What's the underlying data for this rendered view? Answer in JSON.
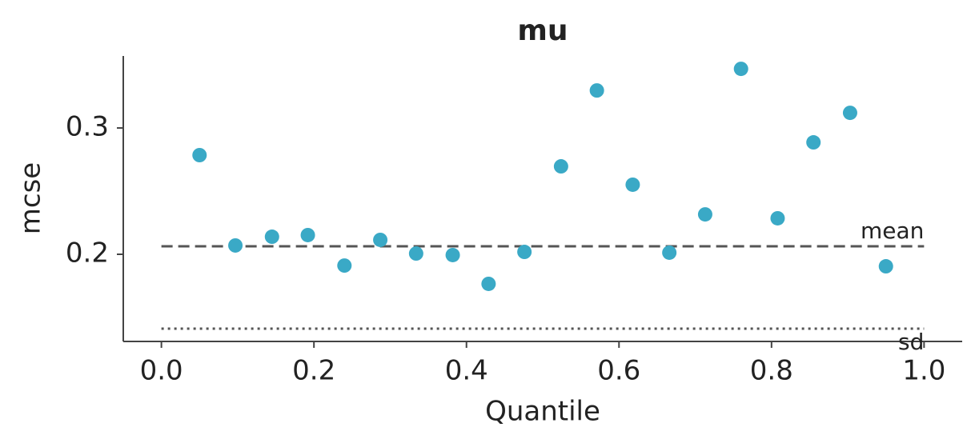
{
  "chart_data": {
    "type": "scatter",
    "title": "mu",
    "xlabel": "Quantile",
    "ylabel": "mcse",
    "x": [
      0.05,
      0.097,
      0.145,
      0.192,
      0.24,
      0.287,
      0.334,
      0.382,
      0.429,
      0.476,
      0.524,
      0.571,
      0.618,
      0.666,
      0.713,
      0.76,
      0.808,
      0.855,
      0.903,
      0.95
    ],
    "values": [
      0.2785,
      0.207,
      0.2139,
      0.2152,
      0.1911,
      0.2114,
      0.2006,
      0.1994,
      0.1766,
      0.2019,
      0.2696,
      0.3297,
      0.2551,
      0.2013,
      0.2316,
      0.3468,
      0.2285,
      0.2886,
      0.312,
      0.1905
    ],
    "color": "#3aa9c6",
    "xlim": [
      -0.05,
      1.05
    ],
    "ylim": [
      0.131,
      0.357
    ],
    "xticks": [
      {
        "value": 0,
        "label": "0.0"
      },
      0.2,
      0.4,
      0.6,
      0.8,
      {
        "value": 1,
        "label": "1.0"
      }
    ],
    "yticks": [
      0.2,
      0.3
    ],
    "reference_lines": [
      {
        "label": "mean",
        "value": 0.2063,
        "style": "dashed"
      },
      {
        "label": "sd",
        "value": 0.1411,
        "style": "dotted"
      }
    ]
  }
}
